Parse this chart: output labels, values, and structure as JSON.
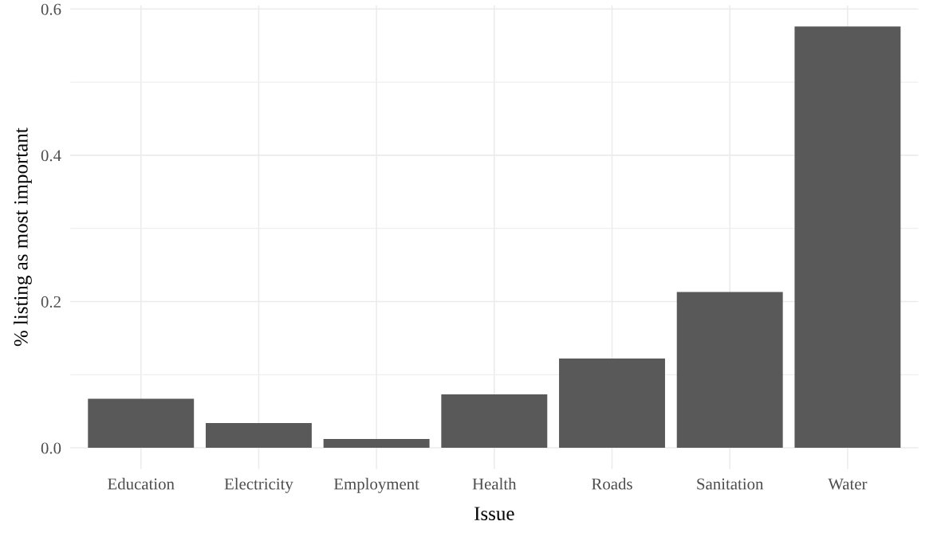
{
  "chart_data": {
    "type": "bar",
    "xlabel": "Issue",
    "ylabel": "% listing as most important",
    "categories": [
      "Education",
      "Electricity",
      "Employment",
      "Health",
      "Roads",
      "Sanitation",
      "Water"
    ],
    "values": [
      0.067,
      0.034,
      0.012,
      0.073,
      0.122,
      0.213,
      0.576
    ],
    "color": "#595959",
    "ylim": [
      -0.029,
      0.605
    ],
    "yticks": [
      {
        "value": 0.0,
        "label": "0.0"
      },
      {
        "value": 0.1,
        "label": null
      },
      {
        "value": 0.2,
        "label": "0.2"
      },
      {
        "value": 0.3,
        "label": null
      },
      {
        "value": 0.4,
        "label": "0.4"
      },
      {
        "value": 0.5,
        "label": null
      },
      {
        "value": 0.6,
        "label": "0.6"
      }
    ],
    "grid": true,
    "legend": false
  }
}
